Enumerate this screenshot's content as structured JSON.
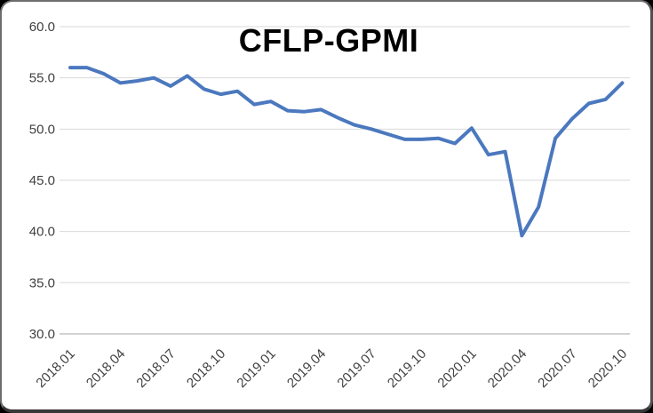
{
  "chart_data": {
    "type": "line",
    "title": "CFLP-GPMI",
    "x": [
      "2018.01",
      "2018.02",
      "2018.03",
      "2018.04",
      "2018.05",
      "2018.06",
      "2018.07",
      "2018.08",
      "2018.09",
      "2018.10",
      "2018.11",
      "2018.12",
      "2019.01",
      "2019.02",
      "2019.03",
      "2019.04",
      "2019.05",
      "2019.06",
      "2019.07",
      "2019.08",
      "2019.09",
      "2019.10",
      "2019.11",
      "2019.12",
      "2020.01",
      "2020.02",
      "2020.03",
      "2020.04",
      "2020.05",
      "2020.06",
      "2020.07",
      "2020.08",
      "2020.09",
      "2020.10"
    ],
    "values": [
      56.0,
      56.0,
      55.4,
      54.5,
      54.7,
      55.0,
      54.2,
      55.2,
      53.9,
      53.4,
      53.7,
      52.4,
      52.7,
      51.8,
      51.7,
      51.9,
      51.1,
      50.4,
      50.0,
      49.5,
      49.0,
      49.0,
      49.1,
      48.6,
      50.1,
      47.5,
      47.8,
      39.6,
      42.4,
      49.1,
      51.0,
      52.5,
      52.9,
      54.5
    ],
    "x_tick_labels": [
      "2018.01",
      "2018.04",
      "2018.07",
      "2018.10",
      "2019.01",
      "2019.04",
      "2019.07",
      "2019.10",
      "2020.01",
      "2020.04",
      "2020.07",
      "2020.10"
    ],
    "x_tick_every": 3,
    "x_tick_rotation_deg": 45,
    "y_ticks": [
      60.0,
      55.0,
      50.0,
      45.0,
      40.0,
      35.0,
      30.0
    ],
    "y_tick_labels": [
      "60.0",
      "55.0",
      "50.0",
      "45.0",
      "40.0",
      "35.0",
      "30.0"
    ],
    "ylim": [
      30.0,
      60.0
    ],
    "grid": "horizontal",
    "legend": "none",
    "colors": {
      "series_line": "#4b78be",
      "gridline": "#d9d9d9",
      "axis_line": "#bfbfbf",
      "tick_label": "#404040",
      "title": "#000000",
      "background": "#ffffff"
    }
  }
}
